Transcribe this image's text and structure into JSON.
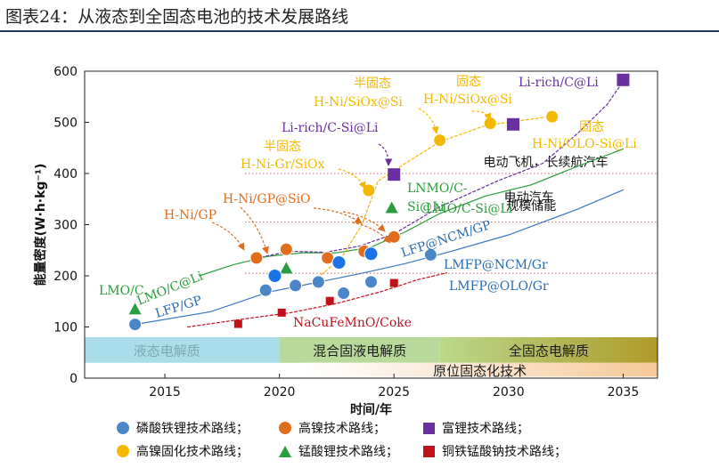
{
  "title": "图表24：从液态到全固态电池的技术发展路线",
  "chart_data": {
    "type": "scatter",
    "xlabel": "时间/年",
    "ylabel": "能量密度(W·h·kg⁻¹)",
    "xlim": [
      2011.5,
      2036.5
    ],
    "ylim": [
      0,
      600
    ],
    "xticks": [
      2015,
      2020,
      2025,
      2030,
      2035
    ],
    "yticks": [
      0,
      100,
      200,
      300,
      400,
      500,
      600
    ],
    "grid": false,
    "legend_position": "bottom",
    "reference_lines": [
      {
        "y": 400,
        "label": "电动飞机，长续航汽车"
      },
      {
        "y": 305,
        "label": "电动汽车"
      },
      {
        "y": 205,
        "label": "规模储能"
      }
    ],
    "electrolyte_bands": [
      {
        "label": "液态电解质",
        "from": 2011.5,
        "to": 2020,
        "color": "#a8dde8"
      },
      {
        "label": "混合固液电解质",
        "from": 2020,
        "to": 2027,
        "color": "#b5d99b"
      },
      {
        "label": "全固态电解质",
        "from": 2027,
        "to": 2036.5,
        "color": "#c8b347"
      }
    ],
    "bottom_band": {
      "label": "原位固态化技术",
      "from": 2021,
      "to": 2036.5
    },
    "series": [
      {
        "name": "磷酸铁锂技术路线",
        "marker": "circle",
        "color": "#4a86c8",
        "points": [
          [
            2013.7,
            105
          ],
          [
            2019.4,
            172
          ],
          [
            2020.7,
            181
          ],
          [
            2021.7,
            188
          ],
          [
            2022.8,
            166
          ],
          [
            2024.0,
            188
          ],
          [
            2026.6,
            241
          ]
        ]
      },
      {
        "name": "高镍技术路线",
        "marker": "circle",
        "color": "#e06d1e",
        "points": [
          [
            2019.0,
            235
          ],
          [
            2020.3,
            252
          ],
          [
            2022.1,
            235
          ],
          [
            2023.7,
            248
          ],
          [
            2025.0,
            276
          ]
        ]
      },
      {
        "name": "富锂技术路线",
        "marker": "square",
        "color": "#6a2fa0",
        "points": [
          [
            2025.0,
            398
          ],
          [
            2030.2,
            496
          ],
          [
            2035.0,
            583
          ]
        ]
      },
      {
        "name": "高镍固化技术路线",
        "marker": "circle",
        "color": "#f5b800",
        "points": [
          [
            2023.9,
            367
          ],
          [
            2027.0,
            465
          ],
          [
            2029.2,
            498
          ],
          [
            2031.9,
            511
          ]
        ]
      },
      {
        "name": "锰酸锂技术路线",
        "marker": "triangle",
        "color": "#2a9d3c",
        "points": [
          [
            2013.7,
            135
          ],
          [
            2020.3,
            215
          ],
          [
            2024.9,
            333
          ]
        ]
      },
      {
        "name": "铜铁锰酸钠技术路线",
        "marker": "square",
        "color": "#c0121a",
        "points": [
          [
            2018.2,
            106
          ],
          [
            2020.1,
            128
          ],
          [
            2022.2,
            151
          ],
          [
            2025.0,
            186
          ]
        ]
      },
      {
        "name": "",
        "marker": "circle",
        "color": "#1a73e8",
        "points": [
          [
            2019.8,
            200
          ],
          [
            2022.6,
            226
          ],
          [
            2024.0,
            243
          ]
        ]
      }
    ],
    "annotations": [
      {
        "text": "LMO/C",
        "color": "#2a9d3c"
      },
      {
        "text": "LMO/C@Li",
        "color": "#2a9d3c"
      },
      {
        "text": "LFP/GP",
        "color": "#2b6cb0"
      },
      {
        "text": "H-Ni/GP",
        "color": "#e06d1e"
      },
      {
        "text": "H-Ni/GP@SiO",
        "color": "#e06d1e"
      },
      {
        "text": "半固态",
        "color": "#f5b800"
      },
      {
        "text": "H-Ni-Gr/SiOx",
        "color": "#f5b800"
      },
      {
        "text": "Li-rich/C-Si@Li",
        "color": "#6a2fa0"
      },
      {
        "text": "半固态",
        "color": "#f5b800"
      },
      {
        "text": "H-Ni/SiOx@Si",
        "color": "#f5b800"
      },
      {
        "text": "固态",
        "color": "#f5b800"
      },
      {
        "text": "H-Ni/SiOx@Si",
        "color": "#f5b800"
      },
      {
        "text": "Li-rich/C@Li",
        "color": "#6a2fa0"
      },
      {
        "text": "固态",
        "color": "#f5b800"
      },
      {
        "text": "H-Ni/OLO-Si@Li",
        "color": "#f5b800"
      },
      {
        "text": "LNMO/C-",
        "color": "#2a9d3c"
      },
      {
        "text": "Si@Li",
        "color": "#2a9d3c"
      },
      {
        "text": "LMO/C-Si@Li",
        "color": "#2a9d3c"
      },
      {
        "text": "LFP@NCM/GP",
        "color": "#2b6cb0"
      },
      {
        "text": "LMFP@NCM/Gr",
        "color": "#2b6cb0"
      },
      {
        "text": "LMFP@OLO/Gr",
        "color": "#2b6cb0"
      },
      {
        "text": "NaCuFeMnO/Coke",
        "color": "#c0121a"
      }
    ]
  }
}
